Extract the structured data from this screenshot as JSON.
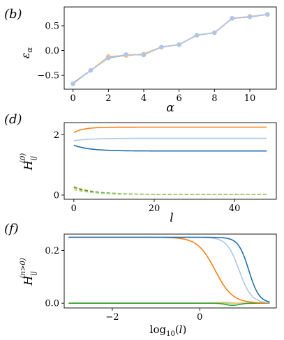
{
  "panels": [
    {
      "label": "(b)",
      "ylabel_html": "ε<tspan font-size='10' dy='3'>α</tspan>",
      "xlabel": "α"
    },
    {
      "label": "(d)",
      "xlabel": "l"
    },
    {
      "label": "(f)",
      "xlabel": "log"
    }
  ],
  "colors": {
    "dark_blue": "#1f6fae",
    "light_blue": "#aec7e8",
    "orange": "#ff7f0e",
    "light_orange": "#ffbb78",
    "green": "#2ca02c",
    "light_green": "#98df8a",
    "brown": "#8c564b"
  },
  "chart_data": [
    {
      "id": "b",
      "type": "line",
      "title": "",
      "xlabel": "α",
      "ylabel": "ε_α",
      "xlim": [
        -0.5,
        11.5
      ],
      "ylim": [
        -0.78,
        0.88
      ],
      "xticks": [
        0,
        2,
        4,
        6,
        8,
        10
      ],
      "yticks": [
        -0.5,
        0.0,
        0.5
      ],
      "ytick_labels": [
        "−0.5",
        "0.0",
        "0.5"
      ],
      "x": [
        0,
        1,
        2,
        3,
        4,
        5,
        6,
        7,
        8,
        9,
        10,
        11
      ],
      "series": [
        {
          "color": "#1f6fae",
          "marker": false,
          "values": [
            -0.66,
            -0.4,
            -0.15,
            -0.09,
            -0.08,
            0.07,
            0.12,
            0.31,
            0.36,
            0.65,
            0.68,
            0.73
          ]
        },
        {
          "color": "#8c564b",
          "marker": false,
          "values": [
            -0.66,
            -0.4,
            -0.13,
            -0.1,
            -0.07,
            0.07,
            0.12,
            0.31,
            0.36,
            0.65,
            0.68,
            0.73
          ]
        },
        {
          "color": "#ffbb78",
          "marker": true,
          "values": [
            -0.67,
            -0.4,
            -0.12,
            -0.1,
            -0.07,
            0.07,
            0.12,
            0.31,
            0.36,
            0.65,
            0.69,
            0.73
          ]
        },
        {
          "color": "#aec7e8",
          "marker": true,
          "values": [
            -0.67,
            -0.4,
            -0.15,
            -0.08,
            -0.09,
            0.07,
            0.12,
            0.31,
            0.36,
            0.65,
            0.68,
            0.73
          ]
        }
      ]
    },
    {
      "id": "d",
      "type": "line",
      "title": "",
      "xlabel": "l",
      "ylabel": "H_ij^(0)",
      "xlim": [
        -2.4,
        50.4
      ],
      "ylim": [
        -0.14,
        2.4
      ],
      "xticks": [
        0,
        20,
        40
      ],
      "yticks": [
        0,
        2
      ],
      "series": [
        {
          "color": "#ff7f0e",
          "style": "solid",
          "start": 2.07,
          "end": 2.25,
          "decay": 2.5
        },
        {
          "color": "#aec7e8",
          "style": "solid",
          "start": 1.8,
          "end": 1.88,
          "decay": 4
        },
        {
          "color": "#1f6fae",
          "style": "solid",
          "start": 1.65,
          "end": 1.46,
          "decay": 4
        },
        {
          "color": "#2ca02c",
          "style": "dashed",
          "start": 0.27,
          "end": 0.02,
          "decay": 5
        },
        {
          "color": "#ff7f0e",
          "style": "dashed",
          "start": 0.25,
          "end": 0.02,
          "decay": 4
        },
        {
          "color": "#98df8a",
          "style": "dashed",
          "start": 0.18,
          "end": 0.02,
          "decay": 5
        }
      ],
      "x_range": [
        0,
        48
      ]
    },
    {
      "id": "f",
      "type": "line",
      "title": "",
      "xlabel": "log10(l)",
      "ylabel": "H_ij^(n>0)",
      "xlim": [
        -3.1,
        1.75
      ],
      "ylim": [
        -0.018,
        0.262
      ],
      "xticks": [
        -2,
        0
      ],
      "xtick_labels": [
        "−2",
        "0"
      ],
      "yticks": [
        0.0,
        0.2
      ],
      "ytick_labels": [
        "0.0",
        "0.2"
      ],
      "x_range": [
        -3.0,
        1.6
      ],
      "series": [
        {
          "color": "#1f6fae",
          "kind": "sigmoid",
          "amp": 0.25,
          "mid": 1.12,
          "width": 0.12
        },
        {
          "color": "#aec7e8",
          "kind": "sigmoid",
          "amp": 0.25,
          "mid": 0.9,
          "width": 0.14
        },
        {
          "color": "#ff7f0e",
          "kind": "sigmoid",
          "amp": 0.25,
          "mid": 0.35,
          "width": 0.2
        },
        {
          "color": "#2ca02c",
          "kind": "dip",
          "amp": -0.008,
          "center": 0.75,
          "width": 0.22
        },
        {
          "color": "#ffbb78",
          "kind": "dip",
          "amp": 0.004,
          "center": 0.55,
          "width": 0.2
        },
        {
          "color": "#98df8a",
          "kind": "flat",
          "amp": 0.0
        }
      ]
    }
  ]
}
